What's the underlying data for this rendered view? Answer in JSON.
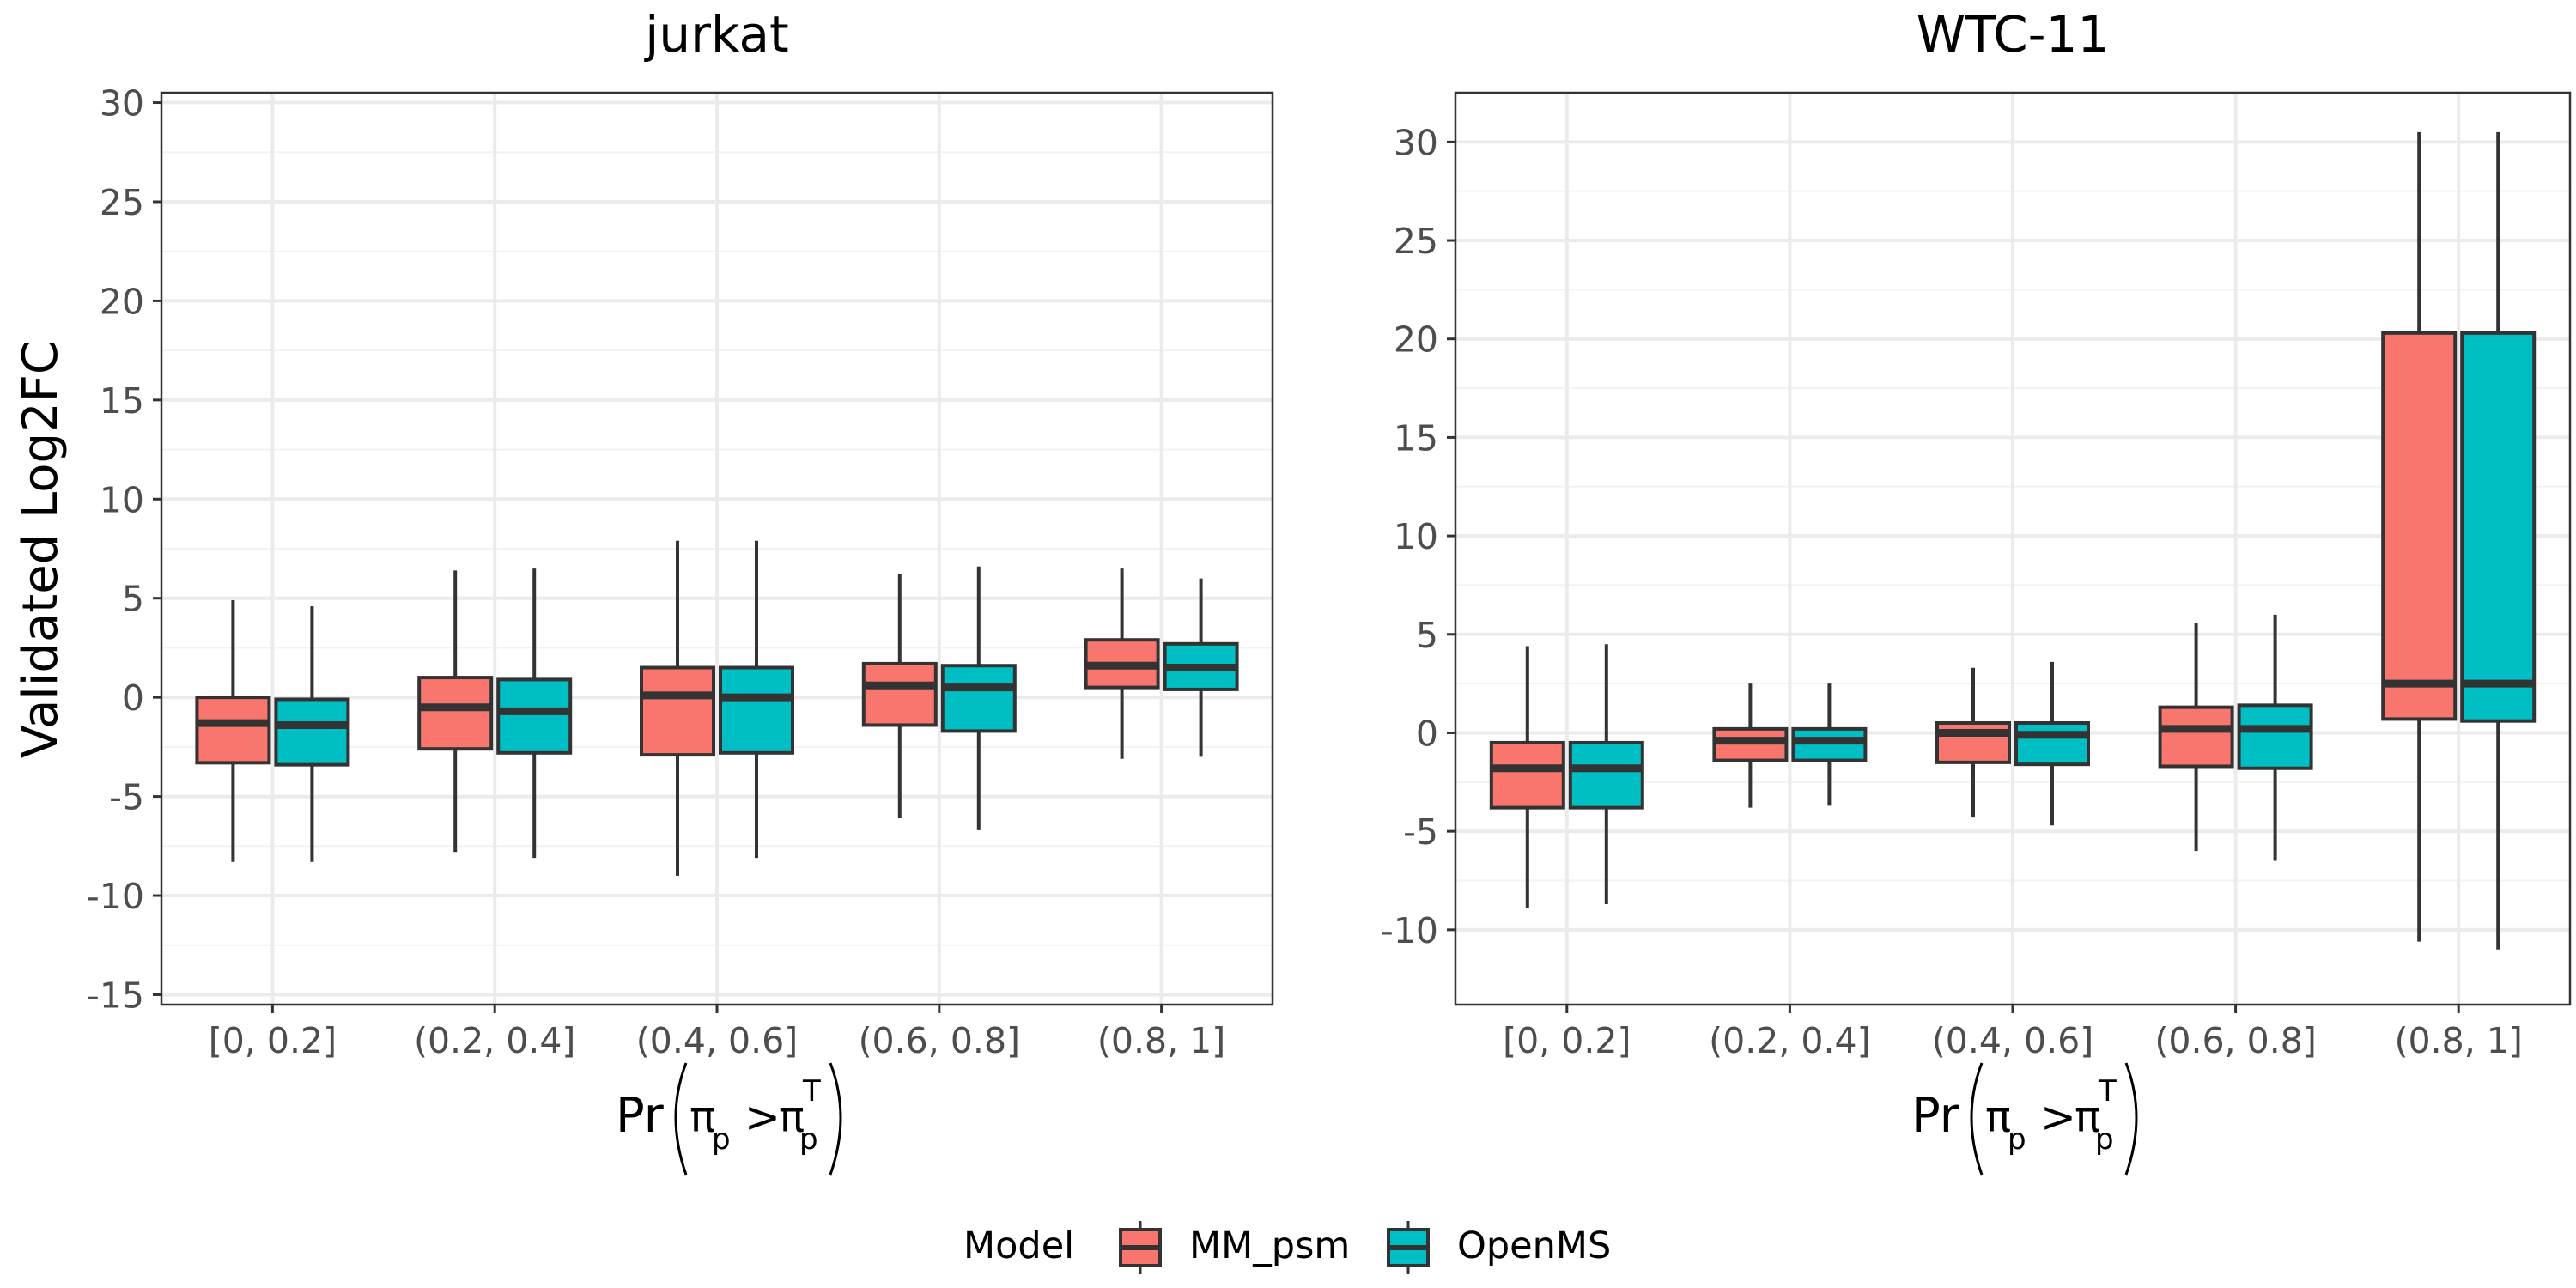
{
  "chart_data": [
    {
      "type": "box",
      "title": "jurkat",
      "xlabel": "Pr(πp > πpT)",
      "xlabel_parts": {
        "prefix": "Pr",
        "pi": "π",
        "subscript": "p",
        "gt": ">",
        "superscript": "T"
      },
      "ylabel": "Validated Log2FC",
      "categories": [
        "[0, 0.2]",
        "(0.2, 0.4]",
        "(0.4, 0.6]",
        "(0.6, 0.8]",
        "(0.8, 1]"
      ],
      "ylim": [
        -15.5,
        30.5
      ],
      "yticks": [
        -15,
        -10,
        -5,
        0,
        5,
        10,
        15,
        20,
        25,
        30
      ],
      "ytick_labels": [
        "-15",
        "-10",
        "-5",
        "0",
        "5",
        "10",
        "15",
        "20",
        "25",
        "30"
      ],
      "grid": true,
      "series": [
        {
          "name": "MM_psm",
          "color": "#F8766D",
          "boxes": [
            {
              "whisker_low": -8.3,
              "q1": -3.3,
              "median": -1.3,
              "q3": 0.0,
              "whisker_high": 4.9
            },
            {
              "whisker_low": -7.8,
              "q1": -2.6,
              "median": -0.5,
              "q3": 1.0,
              "whisker_high": 6.4
            },
            {
              "whisker_low": -9.0,
              "q1": -2.9,
              "median": 0.1,
              "q3": 1.5,
              "whisker_high": 7.9
            },
            {
              "whisker_low": -6.1,
              "q1": -1.4,
              "median": 0.6,
              "q3": 1.7,
              "whisker_high": 6.2
            },
            {
              "whisker_low": -3.1,
              "q1": 0.5,
              "median": 1.6,
              "q3": 2.9,
              "whisker_high": 6.5
            }
          ]
        },
        {
          "name": "OpenMS",
          "color": "#00BFC4",
          "boxes": [
            {
              "whisker_low": -8.3,
              "q1": -3.4,
              "median": -1.4,
              "q3": -0.1,
              "whisker_high": 4.6
            },
            {
              "whisker_low": -8.1,
              "q1": -2.8,
              "median": -0.7,
              "q3": 0.9,
              "whisker_high": 6.5
            },
            {
              "whisker_low": -8.1,
              "q1": -2.8,
              "median": 0.0,
              "q3": 1.5,
              "whisker_high": 7.9
            },
            {
              "whisker_low": -6.7,
              "q1": -1.7,
              "median": 0.5,
              "q3": 1.6,
              "whisker_high": 6.6
            },
            {
              "whisker_low": -3.0,
              "q1": 0.4,
              "median": 1.5,
              "q3": 2.7,
              "whisker_high": 6.0
            }
          ]
        }
      ]
    },
    {
      "type": "box",
      "title": "WTC-11",
      "xlabel": "Pr(πp > πpT)",
      "xlabel_parts": {
        "prefix": "Pr",
        "pi": "π",
        "subscript": "p",
        "gt": ">",
        "superscript": "T"
      },
      "ylabel": "",
      "categories": [
        "[0, 0.2]",
        "(0.2, 0.4]",
        "(0.4, 0.6]",
        "(0.6, 0.8]",
        "(0.8, 1]"
      ],
      "ylim": [
        -13.8,
        32.5
      ],
      "yticks": [
        -10,
        -5,
        0,
        5,
        10,
        15,
        20,
        25,
        30
      ],
      "ytick_labels": [
        "-10",
        "-5",
        "0",
        "5",
        "10",
        "15",
        "20",
        "25",
        "30"
      ],
      "grid": true,
      "series": [
        {
          "name": "MM_psm",
          "color": "#F8766D",
          "boxes": [
            {
              "whisker_low": -8.9,
              "q1": -3.8,
              "median": -1.8,
              "q3": -0.5,
              "whisker_high": 4.4
            },
            {
              "whisker_low": -3.8,
              "q1": -1.4,
              "median": -0.4,
              "q3": 0.2,
              "whisker_high": 2.5
            },
            {
              "whisker_low": -4.3,
              "q1": -1.5,
              "median": 0.0,
              "q3": 0.5,
              "whisker_high": 3.3
            },
            {
              "whisker_low": -6.0,
              "q1": -1.7,
              "median": 0.2,
              "q3": 1.3,
              "whisker_high": 5.6
            },
            {
              "whisker_low": -10.6,
              "q1": 0.7,
              "median": 2.5,
              "q3": 20.3,
              "whisker_high": 30.5
            }
          ]
        },
        {
          "name": "OpenMS",
          "color": "#00BFC4",
          "boxes": [
            {
              "whisker_low": -8.7,
              "q1": -3.8,
              "median": -1.8,
              "q3": -0.5,
              "whisker_high": 4.5
            },
            {
              "whisker_low": -3.7,
              "q1": -1.4,
              "median": -0.4,
              "q3": 0.2,
              "whisker_high": 2.5
            },
            {
              "whisker_low": -4.7,
              "q1": -1.6,
              "median": -0.1,
              "q3": 0.5,
              "whisker_high": 3.6
            },
            {
              "whisker_low": -6.5,
              "q1": -1.8,
              "median": 0.2,
              "q3": 1.4,
              "whisker_high": 6.0
            },
            {
              "whisker_low": -11.0,
              "q1": 0.6,
              "median": 2.5,
              "q3": 20.3,
              "whisker_high": 30.5
            }
          ]
        }
      ]
    }
  ],
  "legend": {
    "title": "Model",
    "position": "bottom",
    "entries": [
      {
        "label": "MM_psm",
        "color": "#F8766D"
      },
      {
        "label": "OpenMS",
        "color": "#00BFC4"
      }
    ]
  }
}
